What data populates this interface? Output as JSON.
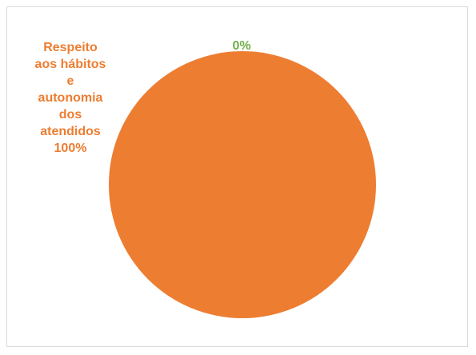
{
  "chart_data": {
    "type": "pie",
    "title": "",
    "categories": [
      "Respeito aos hábitos e autonomia dos atendidos",
      ""
    ],
    "values": [
      100,
      0
    ],
    "series": [
      {
        "values": [
          100,
          0
        ],
        "colors": [
          "#ED7D31",
          "#70AD47"
        ]
      }
    ],
    "data_labels": [
      {
        "lines": [
          "Respeito",
          "aos hábitos",
          "e",
          "autonomia",
          "dos",
          "atendidos",
          "100%"
        ],
        "color": "#ED7D31"
      },
      {
        "lines": [
          "0%"
        ],
        "color": "#70AD47"
      }
    ],
    "legend": "none"
  }
}
